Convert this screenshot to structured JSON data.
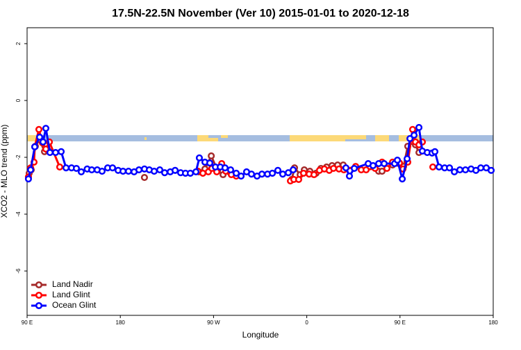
{
  "chart_data": {
    "type": "line",
    "title": "17.5N-22.5N November (Ver 10)   2015-01-01 to 2020-12-18",
    "x_label": "Longitude",
    "y_label": "XCO2 - MLO trend (ppm)",
    "xlim": [
      90,
      540
    ],
    "ylim": [
      -7.56,
      2.56
    ],
    "xticks": [
      {
        "value": 90,
        "label": "90 E"
      },
      {
        "value": 180,
        "label": "180"
      },
      {
        "value": 270,
        "label": "90 W"
      },
      {
        "value": 360,
        "label": "0"
      },
      {
        "value": 450,
        "label": "90 E"
      },
      {
        "value": 540,
        "label": "180"
      }
    ],
    "yticks": [
      -6,
      -4,
      -2,
      0,
      2
    ],
    "legend": "bottom-left",
    "series": [
      {
        "name": "Land Nadir",
        "color": "#a52a2a",
        "x": [
          92.0,
          94.0,
          98.0,
          102.1,
          106.8,
          110.1,
          null,
          203.3,
          null,
          255.7,
          261.7,
          267.8,
          273.8,
          279.2,
          285.2,
          null,
          345.5,
          348.2,
          353.6,
          357.6,
          363.0,
          369.0,
          373.7,
          379.1,
          384.4,
          389.8,
          395.2,
          null,
          429.4,
          432.7,
          442.8,
          453.5,
          457.5,
          461.6,
          464.9,
          468.3
        ],
        "values": [
          -2.56,
          -2.44,
          -1.61,
          -1.37,
          -1.8,
          -1.76,
          null,
          -2.71,
          null,
          -2.51,
          -2.41,
          -1.95,
          -2.46,
          -2.61,
          -2.51,
          null,
          -2.78,
          -2.37,
          -2.61,
          -2.44,
          -2.49,
          -2.56,
          -2.39,
          -2.34,
          -2.29,
          -2.27,
          -2.27,
          null,
          -2.49,
          -2.49,
          -2.27,
          -2.32,
          -1.61,
          -1.44,
          -1.56,
          -1.83
        ]
      },
      {
        "name": "Land Glint",
        "color": "#ff0000",
        "x": [
          91.3,
          93.4,
          96.7,
          97.4,
          101.4,
          104.8,
          108.1,
          111.5,
          121.5,
          null,
          255.0,
          259.7,
          265.0,
          268.4,
          273.1,
          277.9,
          281.8,
          287.2,
          291.9,
          null,
          344.2,
          347.5,
          352.2,
          356.9,
          362.3,
          367.0,
          372.3,
          377.0,
          381.7,
          385.8,
          391.1,
          395.8,
          407.2,
          412.6,
          417.3,
          426.0,
          432.7,
          437.4,
          442.8,
          449.5,
          452.9,
          457.5,
          462.2,
          464.9,
          468.3,
          471.6,
          null,
          481.7
        ],
        "values": [
          -2.69,
          -2.37,
          -2.17,
          -1.63,
          -1.02,
          -1.49,
          -1.71,
          -1.46,
          -2.34,
          null,
          -2.49,
          -2.56,
          -2.51,
          -2.39,
          -2.51,
          -2.22,
          -2.49,
          -2.61,
          -2.66,
          null,
          -2.83,
          -2.78,
          -2.78,
          -2.56,
          -2.59,
          -2.61,
          -2.46,
          -2.41,
          -2.46,
          -2.39,
          -2.41,
          -2.44,
          -2.32,
          -2.44,
          -2.44,
          -2.39,
          -2.17,
          -2.39,
          -2.17,
          -2.2,
          -2.41,
          -2.17,
          -1.02,
          -1.46,
          -1.56,
          -1.46,
          null,
          -2.34
        ]
      },
      {
        "name": "Ocean Glint",
        "color": "#0000ff",
        "x": [
          91.3,
          93.4,
          97.4,
          102.1,
          105.4,
          108.1,
          112.1,
          117.5,
          122.9,
          127.6,
          132.9,
          137.6,
          142.3,
          148.0,
          152.4,
          157.7,
          162.4,
          167.8,
          172.5,
          177.9,
          182.6,
          187.9,
          193.3,
          198.0,
          203.3,
          208.0,
          212.7,
          218.1,
          222.8,
          228.2,
          232.9,
          238.2,
          242.9,
          247.6,
          253.0,
          256.3,
          261.7,
          266.4,
          271.8,
          276.5,
          281.1,
          286.5,
          291.9,
          296.6,
          301.9,
          306.6,
          312.0,
          316.7,
          322.1,
          326.8,
          332.1,
          336.8,
          342.2,
          346.9,
          null,
          397.8,
          401.2,
          405.9,
          419.3,
          424.0,
          429.4,
          434.7,
          444.8,
          447.5,
          452.2,
          456.9,
          459.6,
          463.6,
          468.3,
          471.6,
          476.3,
          481.0,
          483.7,
          487.7,
          493.1,
          497.8,
          502.5,
          507.8,
          513.2,
          518.6,
          523.3,
          528.0,
          533.3,
          538.0
        ],
        "values": [
          -2.76,
          -2.44,
          -1.63,
          -1.29,
          -1.46,
          -0.98,
          -1.83,
          -1.83,
          -1.8,
          -2.37,
          -2.37,
          -2.39,
          -2.51,
          -2.41,
          -2.44,
          -2.44,
          -2.49,
          -2.37,
          -2.37,
          -2.46,
          -2.49,
          -2.49,
          -2.51,
          -2.44,
          -2.41,
          -2.44,
          -2.49,
          -2.44,
          -2.54,
          -2.51,
          -2.46,
          -2.54,
          -2.56,
          -2.56,
          -2.51,
          -2.02,
          -2.17,
          -2.2,
          -2.34,
          -2.34,
          -2.37,
          -2.44,
          -2.56,
          -2.66,
          -2.51,
          -2.59,
          -2.66,
          -2.59,
          -2.59,
          -2.56,
          -2.46,
          -2.59,
          -2.54,
          -2.44,
          null,
          -2.37,
          -2.66,
          -2.39,
          -2.22,
          -2.29,
          -2.22,
          -2.22,
          -2.22,
          -2.1,
          -2.76,
          -2.05,
          -1.34,
          -1.22,
          -0.95,
          -1.78,
          -1.83,
          -1.85,
          -1.8,
          -2.34,
          -2.37,
          -2.37,
          -2.51,
          -2.44,
          -2.44,
          -2.41,
          -2.46,
          -2.37,
          -2.37,
          -2.46
        ]
      }
    ]
  }
}
